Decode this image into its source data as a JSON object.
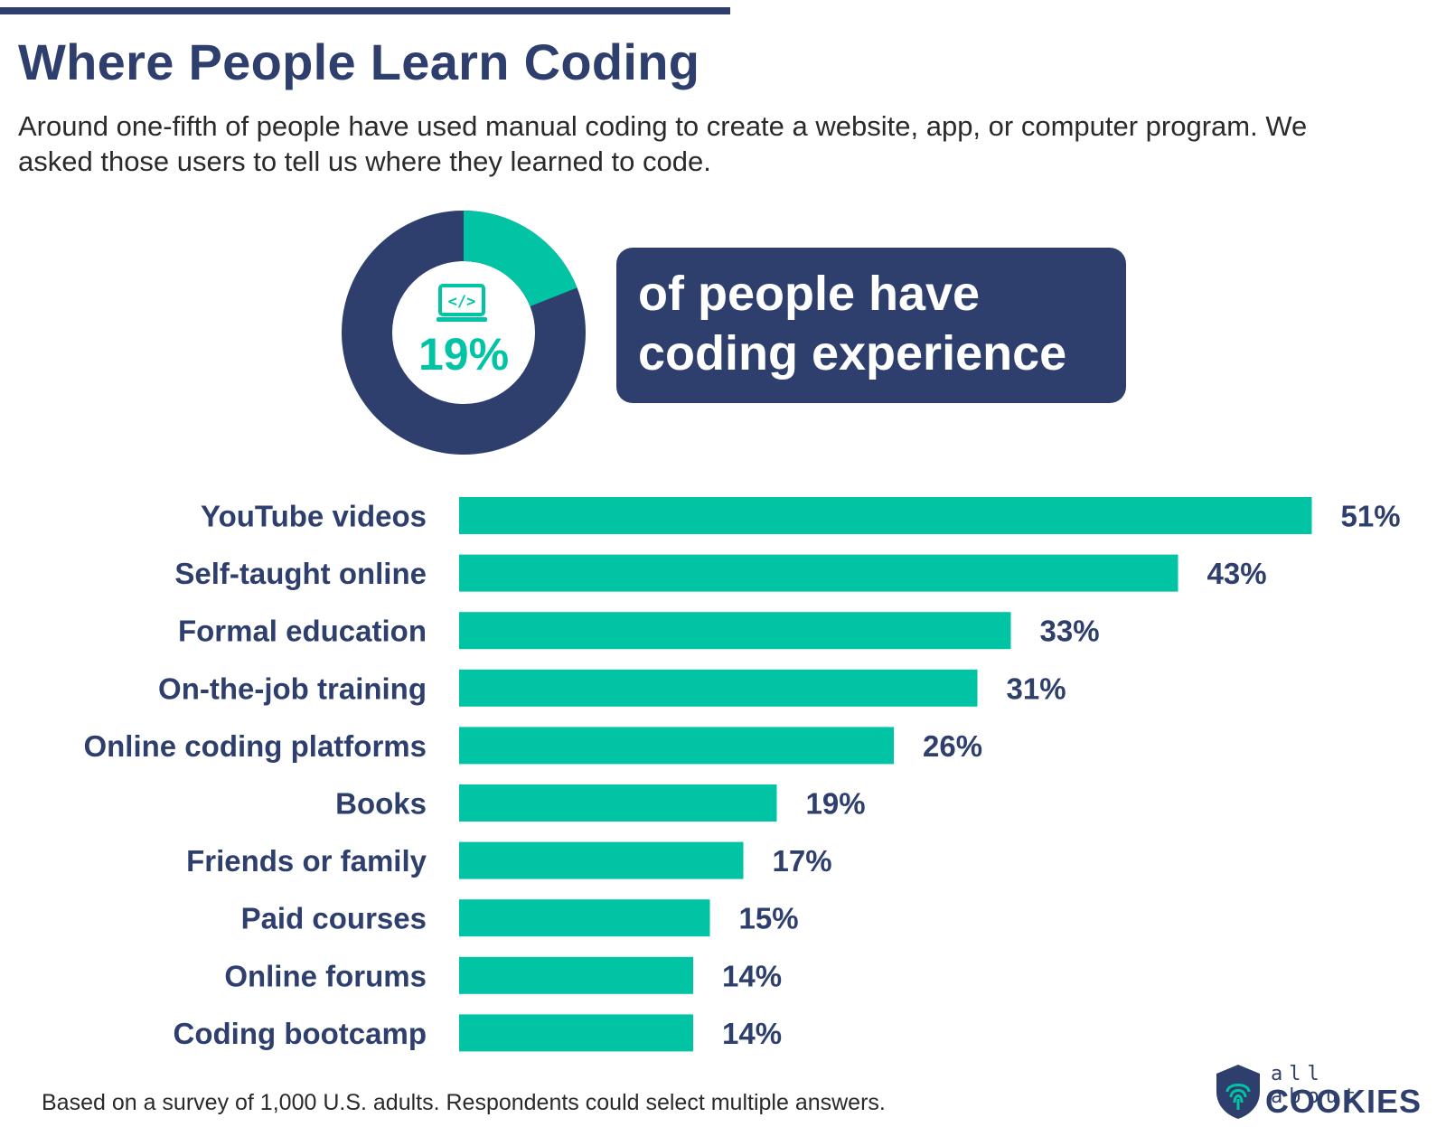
{
  "header": {
    "title": "Where People Learn Coding",
    "subtitle": "Around one-fifth of people have used manual coding to create a website, app, or computer program. We asked those users to tell us where they learned to code."
  },
  "highlight": {
    "value_label": "19%",
    "fraction": 0.19,
    "icon": "laptop-code-icon",
    "callout_line1": "of people have",
    "callout_line2": "coding experience"
  },
  "colors": {
    "navy": "#2e3f6e",
    "teal": "#00c4a3",
    "text": "#2a2a2a"
  },
  "chart_data": {
    "type": "bar",
    "orientation": "horizontal",
    "categories": [
      "YouTube videos",
      "Self-taught online",
      "Formal education",
      "On-the-job training",
      "Online coding platforms",
      "Books",
      "Friends or family",
      "Paid courses",
      "Online forums",
      "Coding bootcamp"
    ],
    "values": [
      51,
      43,
      33,
      31,
      26,
      19,
      17,
      15,
      14,
      14
    ],
    "value_labels": [
      "51%",
      "43%",
      "33%",
      "31%",
      "26%",
      "19%",
      "17%",
      "15%",
      "14%",
      "14%"
    ],
    "grid": false
  },
  "footer": {
    "note": "Based on a survey of 1,000 U.S. adults.  Respondents could select multiple answers.",
    "logo_top": "all about",
    "logo_bottom": "COOKIES"
  }
}
